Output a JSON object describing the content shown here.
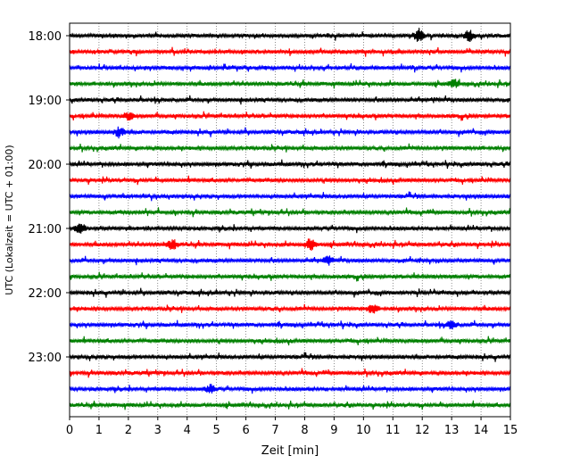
{
  "chart_data": {
    "type": "line",
    "title": "",
    "xlabel": "Zeit  [min]",
    "ylabel": "UTC (Lokalzeit = UTC + 01:00)",
    "xlim": [
      0,
      15
    ],
    "x_ticks": [
      "0",
      "1",
      "2",
      "3",
      "4",
      "5",
      "6",
      "7",
      "8",
      "9",
      "10",
      "11",
      "12",
      "13",
      "14",
      "15"
    ],
    "y_tick_labels": [
      "18:00",
      "19:00",
      "20:00",
      "21:00",
      "22:00",
      "23:00"
    ],
    "grid": "vertical dotted lines at each minute",
    "trace_colors": [
      "#000000",
      "#ff0000",
      "#0000ff",
      "#008000"
    ],
    "traces": [
      {
        "start": "18:00",
        "color": "#000000"
      },
      {
        "start": "18:15",
        "color": "#ff0000"
      },
      {
        "start": "18:30",
        "color": "#0000ff"
      },
      {
        "start": "18:45",
        "color": "#008000"
      },
      {
        "start": "19:00",
        "color": "#000000"
      },
      {
        "start": "19:15",
        "color": "#ff0000"
      },
      {
        "start": "19:30",
        "color": "#0000ff"
      },
      {
        "start": "19:45",
        "color": "#008000"
      },
      {
        "start": "20:00",
        "color": "#000000"
      },
      {
        "start": "20:15",
        "color": "#ff0000"
      },
      {
        "start": "20:30",
        "color": "#0000ff"
      },
      {
        "start": "20:45",
        "color": "#008000"
      },
      {
        "start": "21:00",
        "color": "#000000"
      },
      {
        "start": "21:15",
        "color": "#ff0000"
      },
      {
        "start": "21:30",
        "color": "#0000ff"
      },
      {
        "start": "21:45",
        "color": "#008000"
      },
      {
        "start": "22:00",
        "color": "#000000"
      },
      {
        "start": "22:15",
        "color": "#ff0000"
      },
      {
        "start": "22:30",
        "color": "#0000ff"
      },
      {
        "start": "22:45",
        "color": "#008000"
      },
      {
        "start": "23:00",
        "color": "#000000"
      },
      {
        "start": "23:15",
        "color": "#ff0000"
      },
      {
        "start": "23:30",
        "color": "#0000ff"
      },
      {
        "start": "23:45",
        "color": "#008000"
      }
    ],
    "events": [
      {
        "start": "18:00",
        "minute": 11.9,
        "amplitude": 1.0
      },
      {
        "start": "18:00",
        "minute": 13.6,
        "amplitude": 0.9
      },
      {
        "start": "18:45",
        "minute": 13.1,
        "amplitude": 0.7
      },
      {
        "start": "19:15",
        "minute": 2.0,
        "amplitude": 0.6
      },
      {
        "start": "19:30",
        "minute": 1.7,
        "amplitude": 0.8
      },
      {
        "start": "21:00",
        "minute": 0.35,
        "amplitude": 0.7
      },
      {
        "start": "21:15",
        "minute": 3.5,
        "amplitude": 0.8
      },
      {
        "start": "21:15",
        "minute": 8.2,
        "amplitude": 1.0
      },
      {
        "start": "21:30",
        "minute": 8.8,
        "amplitude": 0.6
      },
      {
        "start": "22:15",
        "minute": 10.3,
        "amplitude": 0.9
      },
      {
        "start": "22:30",
        "minute": 13.0,
        "amplitude": 0.6
      },
      {
        "start": "23:30",
        "minute": 4.8,
        "amplitude": 0.7
      }
    ]
  }
}
